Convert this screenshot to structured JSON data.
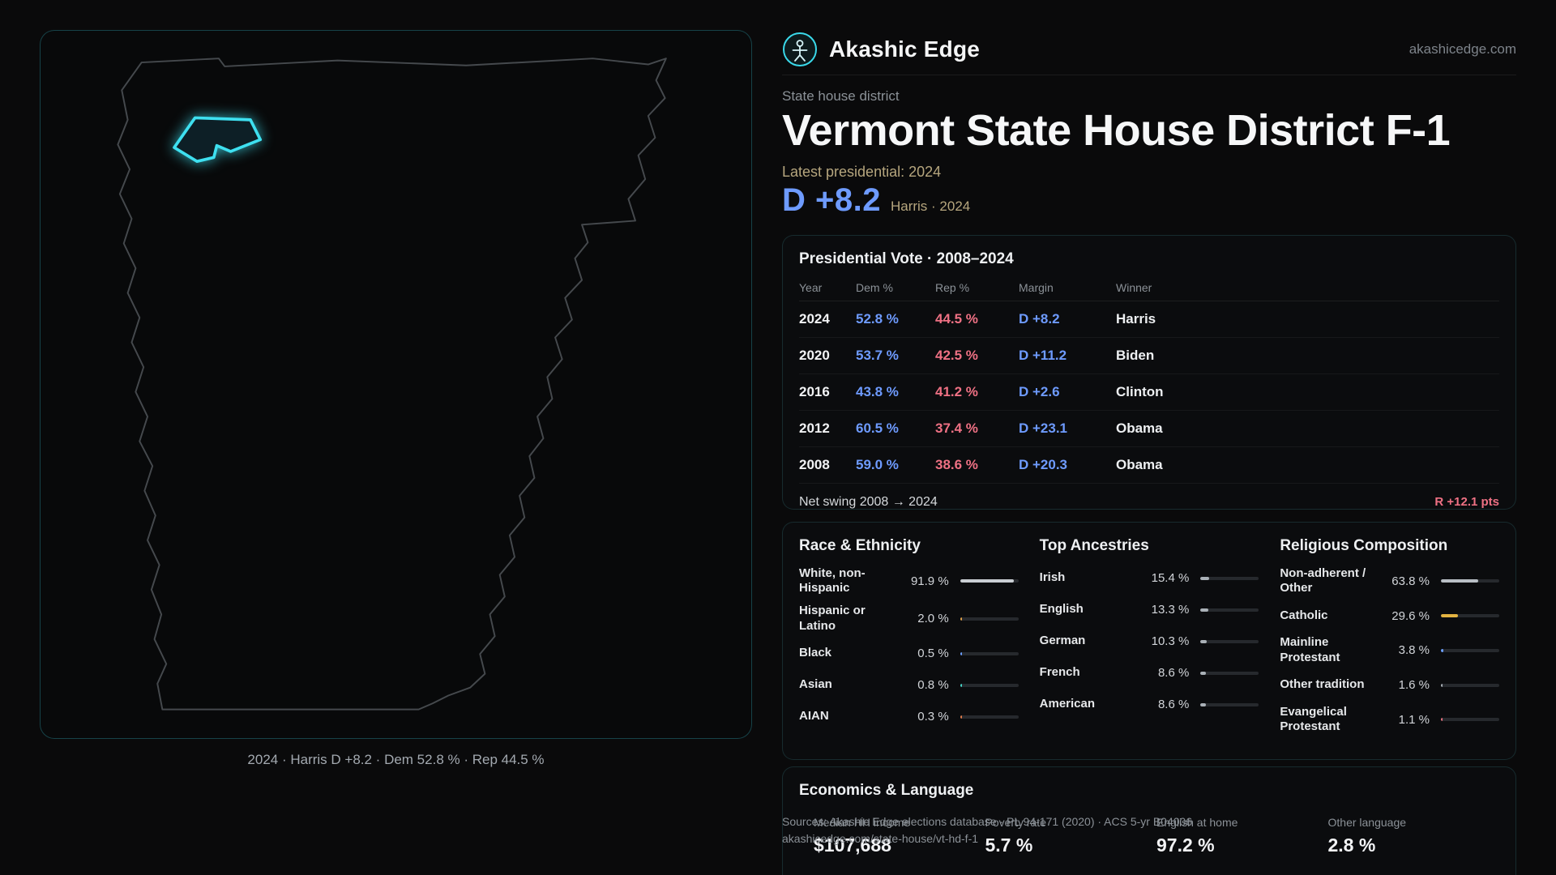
{
  "brand": {
    "name": "Akashic Edge",
    "domain": "akashicedge.com"
  },
  "header": {
    "kicker": "State house district",
    "title": "Vermont State House District F-1",
    "latest_label": "Latest presidential: 2024",
    "headline_margin": "D +8.2",
    "headline_sub": "Harris · 2024"
  },
  "map": {
    "caption": "2024 · Harris D +8.2 · Dem 52.8 % · Rep 44.5 %"
  },
  "presidential": {
    "title": "Presidential Vote · 2008–2024",
    "columns": [
      "Year",
      "Dem %",
      "Rep %",
      "Margin",
      "Winner"
    ],
    "rows": [
      {
        "year": "2024",
        "dem": "52.8 %",
        "rep": "44.5 %",
        "margin": "D +8.2",
        "winner": "Harris"
      },
      {
        "year": "2020",
        "dem": "53.7 %",
        "rep": "42.5 %",
        "margin": "D +11.2",
        "winner": "Biden"
      },
      {
        "year": "2016",
        "dem": "43.8 %",
        "rep": "41.2 %",
        "margin": "D +2.6",
        "winner": "Clinton"
      },
      {
        "year": "2012",
        "dem": "60.5 %",
        "rep": "37.4 %",
        "margin": "D +23.1",
        "winner": "Obama"
      },
      {
        "year": "2008",
        "dem": "59.0 %",
        "rep": "38.6 %",
        "margin": "D +20.3",
        "winner": "Obama"
      }
    ],
    "swing_label": "Net swing 2008 → 2024",
    "swing_value": "R +12.1 pts"
  },
  "demographics": {
    "race": {
      "title": "Race & Ethnicity",
      "items": [
        {
          "label": "White, non-Hispanic",
          "value": "91.9 %",
          "pct": 91.9,
          "color": "#c9ced3"
        },
        {
          "label": "Hispanic or Latino",
          "value": "2.0 %",
          "pct": 2.0,
          "color": "#e0a14a"
        },
        {
          "label": "Black",
          "value": "0.5 %",
          "pct": 0.5,
          "color": "#6b9fff"
        },
        {
          "label": "Asian",
          "value": "0.8 %",
          "pct": 0.8,
          "color": "#45d6c8"
        },
        {
          "label": "AIAN",
          "value": "0.3 %",
          "pct": 0.3,
          "color": "#e07b4a"
        }
      ]
    },
    "ancestries": {
      "title": "Top Ancestries",
      "items": [
        {
          "label": "Irish",
          "value": "15.4 %",
          "pct": 15.4,
          "color": "#aab1b7"
        },
        {
          "label": "English",
          "value": "13.3 %",
          "pct": 13.3,
          "color": "#aab1b7"
        },
        {
          "label": "German",
          "value": "10.3 %",
          "pct": 10.3,
          "color": "#aab1b7"
        },
        {
          "label": "French",
          "value": "8.6 %",
          "pct": 8.6,
          "color": "#aab1b7"
        },
        {
          "label": "American",
          "value": "8.6 %",
          "pct": 8.6,
          "color": "#aab1b7"
        }
      ]
    },
    "religion": {
      "title": "Religious Composition",
      "items": [
        {
          "label": "Non-adherent / Other",
          "value": "63.8 %",
          "pct": 63.8,
          "color": "#b9bfc5"
        },
        {
          "label": "Catholic",
          "value": "29.6 %",
          "pct": 29.6,
          "color": "#e3b341"
        },
        {
          "label": "Mainline Protestant",
          "value": "3.8 %",
          "pct": 3.8,
          "color": "#6b9fff"
        },
        {
          "label": "Other tradition",
          "value": "1.6 %",
          "pct": 1.6,
          "color": "#aab1b7"
        },
        {
          "label": "Evangelical Protestant",
          "value": "1.1 %",
          "pct": 1.1,
          "color": "#e8737f"
        }
      ]
    }
  },
  "economics": {
    "title": "Economics & Language",
    "stats": [
      {
        "label": "Median HH income",
        "value": "$107,688"
      },
      {
        "label": "Poverty rate",
        "value": "5.7 %"
      },
      {
        "label": "English at home",
        "value": "97.2 %"
      },
      {
        "label": "Other language",
        "value": "2.8 %"
      }
    ]
  },
  "footer": {
    "sources": "Sources: Akashic Edge elections database · PL 94-171 (2020) · ACS 5-yr B04006",
    "permalink": "akashicedge.com/state-house/vt-hd-f-1"
  },
  "colors": {
    "accent": "#3ad9ea",
    "dem": "#6e9bff",
    "rep": "#ef7184",
    "gold": "#e3b341"
  }
}
